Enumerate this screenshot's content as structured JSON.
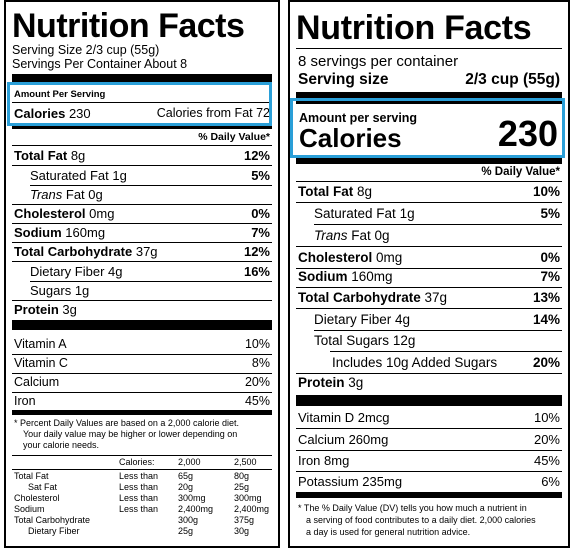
{
  "highlight_color": "#2a9fd8",
  "old_label": {
    "title": "Nutrition Facts",
    "serving_size": "Serving Size 2/3 cup (55g)",
    "servings_per_container": "Servings Per Container About 8",
    "amount_per_serving": "Amount Per Serving",
    "calories_label": "Calories",
    "calories_value": "230",
    "calories_from_fat": "Calories from Fat 72",
    "dv_header": "% Daily Value*",
    "nutrients": [
      {
        "name": "Total Fat",
        "amount": "8g",
        "dv": "12%"
      },
      {
        "name": "Saturated Fat",
        "amount": "1g",
        "dv": "5%"
      },
      {
        "name": "Trans",
        "amount": "Fat 0g",
        "dv": ""
      },
      {
        "name": "Cholesterol",
        "amount": "0mg",
        "dv": "0%"
      },
      {
        "name": "Sodium",
        "amount": "160mg",
        "dv": "7%"
      },
      {
        "name": "Total Carbohydrate",
        "amount": "37g",
        "dv": "12%"
      },
      {
        "name": "Dietary Fiber",
        "amount": "4g",
        "dv": "16%"
      },
      {
        "name": "Sugars",
        "amount": "1g",
        "dv": ""
      },
      {
        "name": "Protein",
        "amount": "3g",
        "dv": ""
      }
    ],
    "vitamins": [
      {
        "name": "Vitamin A",
        "dv": "10%"
      },
      {
        "name": "Vitamin C",
        "dv": "8%"
      },
      {
        "name": "Calcium",
        "dv": "20%"
      },
      {
        "name": "Iron",
        "dv": "45%"
      }
    ],
    "footnote_lines": [
      "* Percent Daily Values are based on a 2,000 calorie diet.",
      "Your daily value may be higher or lower depending on",
      "your calorie needs."
    ],
    "reference_table": {
      "header": [
        "",
        "",
        "Calories:",
        "2,000",
        "2,500"
      ],
      "rows": [
        [
          "Total Fat",
          "Less than",
          "65g",
          "80g"
        ],
        [
          "Sat Fat",
          "Less than",
          "20g",
          "25g"
        ],
        [
          "Cholesterol",
          "Less than",
          "300mg",
          "300mg"
        ],
        [
          "Sodium",
          "Less than",
          "2,400mg",
          "2,400mg"
        ],
        [
          "Total Carbohydrate",
          "",
          "300g",
          "375g"
        ],
        [
          "Dietary Fiber",
          "",
          "25g",
          "30g"
        ]
      ]
    }
  },
  "new_label": {
    "title": "Nutrition Facts",
    "servings_per_container": "8 servings per container",
    "serving_size_label": "Serving size",
    "serving_size_value": "2/3 cup (55g)",
    "amount_per_serving": "Amount per serving",
    "calories_label": "Calories",
    "calories_value": "230",
    "dv_header": "% Daily Value*",
    "nutrients": [
      {
        "name": "Total Fat",
        "amount": "8g",
        "dv": "10%"
      },
      {
        "name": "Saturated Fat",
        "amount": "1g",
        "dv": "5%"
      },
      {
        "name": "Trans",
        "amount": "Fat 0g",
        "dv": ""
      },
      {
        "name": "Cholesterol",
        "amount": "0mg",
        "dv": "0%"
      },
      {
        "name": "Sodium",
        "amount": "160mg",
        "dv": "7%"
      },
      {
        "name": "Total Carbohydrate",
        "amount": "37g",
        "dv": "13%"
      },
      {
        "name": "Dietary Fiber",
        "amount": "4g",
        "dv": "14%"
      },
      {
        "name": "Total Sugars",
        "amount": "12g",
        "dv": ""
      },
      {
        "name": "Includes 10g Added Sugars",
        "amount": "",
        "dv": "20%"
      },
      {
        "name": "Protein",
        "amount": "3g",
        "dv": ""
      }
    ],
    "vitamins": [
      {
        "name": "Vitamin D 2mcg",
        "dv": "10%"
      },
      {
        "name": "Calcium 260mg",
        "dv": "20%"
      },
      {
        "name": "Iron 8mg",
        "dv": "45%"
      },
      {
        "name": "Potassium 235mg",
        "dv": "6%"
      }
    ],
    "footnote_lines": [
      "* The % Daily Value (DV) tells you how much a nutrient in",
      "a serving of food contributes to a daily diet. 2,000 calories",
      "a day is used for general nutrition advice."
    ]
  }
}
